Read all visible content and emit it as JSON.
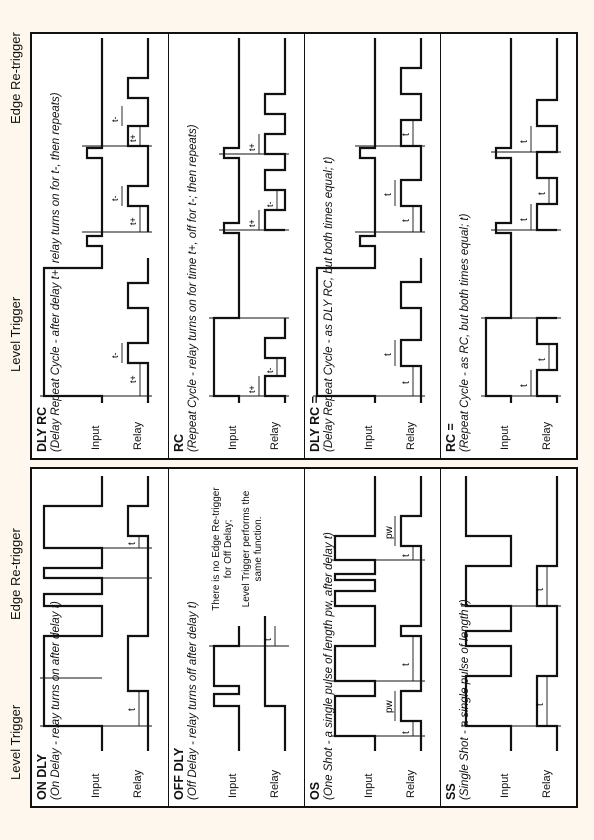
{
  "headers": {
    "level_trigger": "Level Trigger",
    "edge_retrigger": "Edge Re-trigger"
  },
  "labels": {
    "input": "Input",
    "relay": "Relay"
  },
  "panels": [
    {
      "id": "on-dly",
      "title": "ON DLY",
      "desc": "(On Delay - relay turns on after delay t)"
    },
    {
      "id": "off-dly",
      "title": "OFF DLY",
      "desc": "(Off Delay - relay turns off after delay t)"
    },
    {
      "id": "os",
      "title": "OS",
      "desc": "(One Shot - a single pulse of length pw, after delay t)"
    },
    {
      "id": "ss",
      "title": "SS",
      "desc": "(Single Shot - a single pulse of length t)"
    },
    {
      "id": "dly-rc",
      "title": "DLY RC",
      "desc": "(Delay Repeat Cycle - after delay t+, relay turns on for t-, then repeats)"
    },
    {
      "id": "rc",
      "title": "RC",
      "desc": "(Repeat Cycle - relay turns on for time t+, off for t-; then repeats)"
    },
    {
      "id": "dly-rc-eq",
      "title": "DLY RC =",
      "desc": "(Delay Repeat Cycle - as DLY RC, but both times equal; t)"
    },
    {
      "id": "rc-eq",
      "title": "RC =",
      "desc": "(Repeat Cycle - as RC, but both times equal; t)"
    }
  ],
  "notes": {
    "off_dly_line1": "There is no Edge Re-trigger",
    "off_dly_line2": "for Off Delay;",
    "off_dly_line3": "Level Trigger performs the",
    "off_dly_line4": "same function."
  },
  "marks": {
    "t": "t",
    "t_plus": "t+",
    "t_minus": "t-",
    "pw": "pw"
  }
}
